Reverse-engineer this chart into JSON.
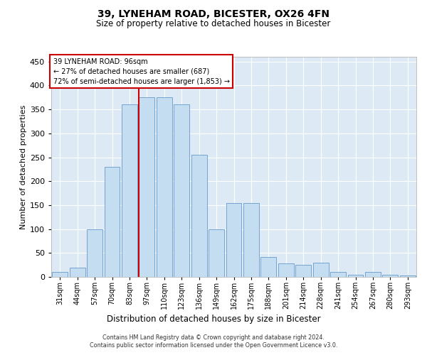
{
  "title_line1": "39, LYNEHAM ROAD, BICESTER, OX26 4FN",
  "title_line2": "Size of property relative to detached houses in Bicester",
  "xlabel": "Distribution of detached houses by size in Bicester",
  "ylabel": "Number of detached properties",
  "categories": [
    "31sqm",
    "44sqm",
    "57sqm",
    "70sqm",
    "83sqm",
    "97sqm",
    "110sqm",
    "123sqm",
    "136sqm",
    "149sqm",
    "162sqm",
    "175sqm",
    "188sqm",
    "201sqm",
    "214sqm",
    "228sqm",
    "241sqm",
    "254sqm",
    "267sqm",
    "280sqm",
    "293sqm"
  ],
  "values": [
    10,
    20,
    100,
    230,
    360,
    375,
    375,
    360,
    255,
    100,
    155,
    155,
    42,
    28,
    25,
    30,
    10,
    5,
    10,
    5,
    3
  ],
  "bar_color": "#c5ddf0",
  "bar_edge_color": "#6699cc",
  "vline_index": 5,
  "vline_color": "#cc0000",
  "annotation_line1": "39 LYNEHAM ROAD: 96sqm",
  "annotation_line2": "← 27% of detached houses are smaller (687)",
  "annotation_line3": "72% of semi-detached houses are larger (1,853) →",
  "ylim_max": 460,
  "yticks": [
    0,
    50,
    100,
    150,
    200,
    250,
    300,
    350,
    400,
    450
  ],
  "background_color": "#ddeaf5",
  "footer_line1": "Contains HM Land Registry data © Crown copyright and database right 2024.",
  "footer_line2": "Contains public sector information licensed under the Open Government Licence v3.0."
}
